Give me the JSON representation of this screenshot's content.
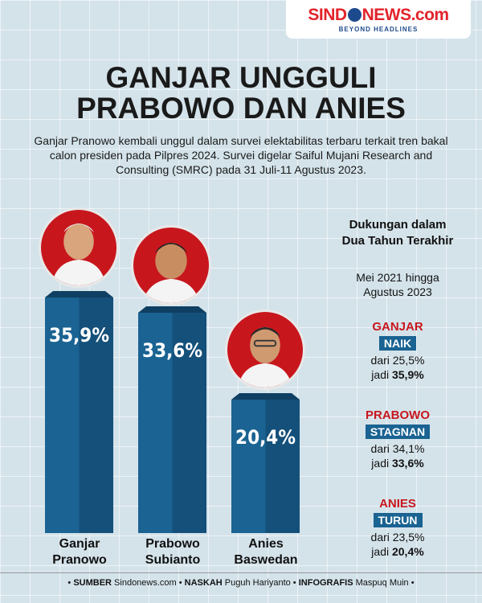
{
  "logo": {
    "brand_left": "SIND",
    "brand_right": "NEWS.com",
    "tagline": "BEYOND HEADLINES"
  },
  "title_line1": "GANJAR UNGGULI",
  "title_line2": "PRABOWO DAN ANIES",
  "subtitle": "Ganjar Pranowo kembali unggul dalam survei elektabilitas terbaru terkait tren bakal calon presiden pada Pilpres 2024. Survei digelar Saiful Mujani Research and Consulting (SMRC) pada 31 Juli-11 Agustus 2023.",
  "side": {
    "heading": "Dukungan dalam Dua Tahun Terakhir",
    "period": "Mei 2021 hingga Agustus 2023"
  },
  "trends": [
    {
      "name": "GANJAR",
      "badge": "NAIK",
      "from": "dari 25,5%",
      "to_prefix": "jadi ",
      "to_value": "35,9%"
    },
    {
      "name": "PRABOWO",
      "badge": "STAGNAN",
      "from": "dari 34,1%",
      "to_prefix": "jadi ",
      "to_value": "33,6%"
    },
    {
      "name": "ANIES",
      "badge": "TURUN",
      "from": "dari 23,5%",
      "to_prefix": "jadi ",
      "to_value": "20,4%"
    }
  ],
  "candidates": [
    {
      "first": "Ganjar",
      "last": "Pranowo"
    },
    {
      "first": "Prabowo",
      "last": "Subianto"
    },
    {
      "first": "Anies",
      "last": "Baswedan"
    }
  ],
  "footer": {
    "sumber_label": "SUMBER",
    "sumber": "Sindonews.com",
    "naskah_label": "NASKAH",
    "naskah": "Puguh Hariyanto",
    "infografis_label": "INFOGRAFIS",
    "infografis": "Maspuq Muin"
  },
  "colors": {
    "bar": "#1a6392",
    "bar_dark": "#14507a",
    "accent": "#c8161d"
  },
  "chart_data": {
    "type": "bar",
    "categories": [
      "Ganjar Pranowo",
      "Prabowo Subianto",
      "Anies Baswedan"
    ],
    "values": [
      35.9,
      33.6,
      20.4
    ],
    "value_labels": [
      "35,9%",
      "33,6%",
      "20,4%"
    ],
    "title": "",
    "xlabel": "",
    "ylabel": "",
    "ylim": [
      0,
      40
    ],
    "grid": false,
    "legend": "none"
  }
}
